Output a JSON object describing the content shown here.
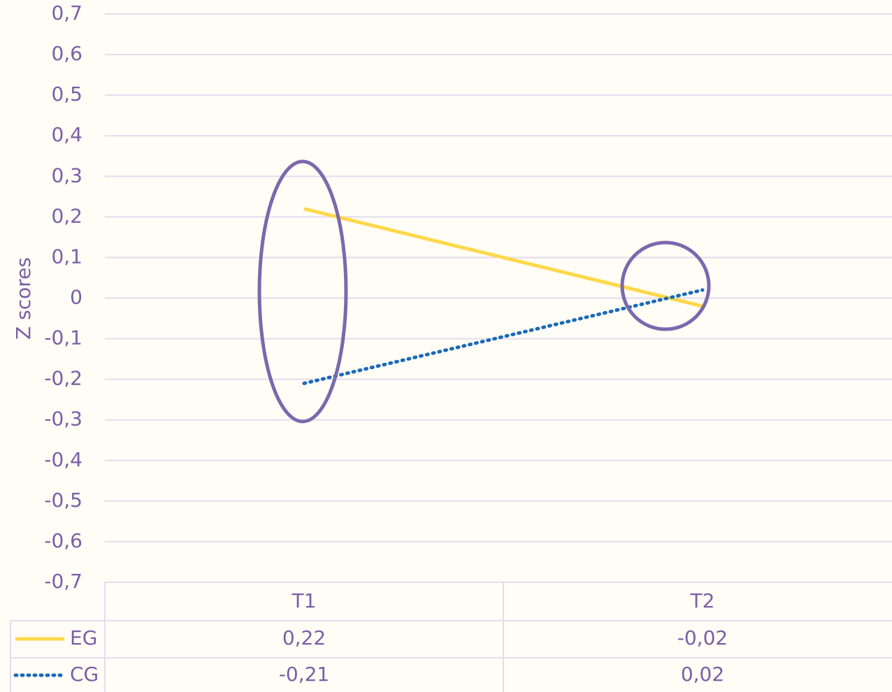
{
  "chart_data": {
    "type": "line",
    "y_label": "Z scores",
    "categories": [
      "T1",
      "T2"
    ],
    "series": [
      {
        "name": "EG",
        "color": "#ffd84a",
        "dash": "solid",
        "values": [
          0.22,
          -0.02
        ],
        "value_labels": [
          "0,22",
          "-0,02"
        ]
      },
      {
        "name": "CG",
        "color": "#1b6ab8",
        "dash": "dotted",
        "values": [
          -0.21,
          0.02
        ],
        "value_labels": [
          "-0,21",
          "0,02"
        ]
      }
    ],
    "ylim": [
      -0.7,
      0.7
    ],
    "yticks": [
      {
        "value": -0.7,
        "label": "-0,7"
      },
      {
        "value": -0.6,
        "label": "-0,6"
      },
      {
        "value": -0.5,
        "label": "-0,5"
      },
      {
        "value": -0.4,
        "label": "-0,4"
      },
      {
        "value": -0.3,
        "label": "-0,3"
      },
      {
        "value": -0.2,
        "label": "-0,2"
      },
      {
        "value": -0.1,
        "label": "-0,1"
      },
      0,
      {
        "value": 0.1,
        "label": "0,1"
      },
      {
        "value": 0.2,
        "label": "0,2"
      },
      {
        "value": 0.3,
        "label": "0,3"
      },
      {
        "value": 0.4,
        "label": "0,4"
      },
      {
        "value": 0.5,
        "label": "0,5"
      },
      {
        "value": 0.6,
        "label": "0,6"
      },
      {
        "value": 0.7,
        "label": "0,7"
      }
    ],
    "grid": true,
    "data_table": true
  }
}
